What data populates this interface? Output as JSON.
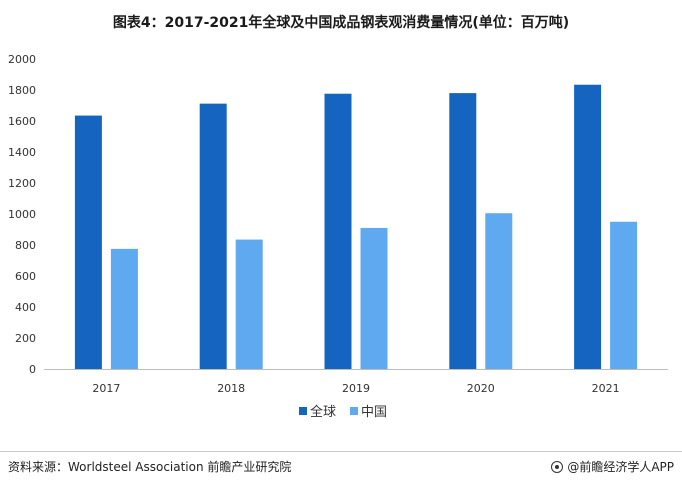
{
  "chart_data": {
    "type": "bar",
    "title": "图表4：2017-2021年全球及中国成品钢表观消费量情况(单位：百万吨)",
    "categories": [
      "2017",
      "2018",
      "2019",
      "2020",
      "2021"
    ],
    "series": [
      {
        "name": "全球",
        "color": "#1565c0",
        "values": [
          1635,
          1712,
          1776,
          1780,
          1834
        ]
      },
      {
        "name": "中国",
        "color": "#5ea9f0",
        "values": [
          775,
          835,
          910,
          1005,
          950
        ]
      }
    ],
    "ylim": [
      0,
      2000
    ],
    "yticks": [
      0,
      200,
      400,
      600,
      800,
      1000,
      1200,
      1400,
      1600,
      1800,
      2000
    ],
    "grid": false,
    "legend_position": "bottom"
  },
  "footer": {
    "source": "资料来源：Worldsteel Association 前瞻产业研究院",
    "brand": "@前瞻经济学人APP"
  }
}
